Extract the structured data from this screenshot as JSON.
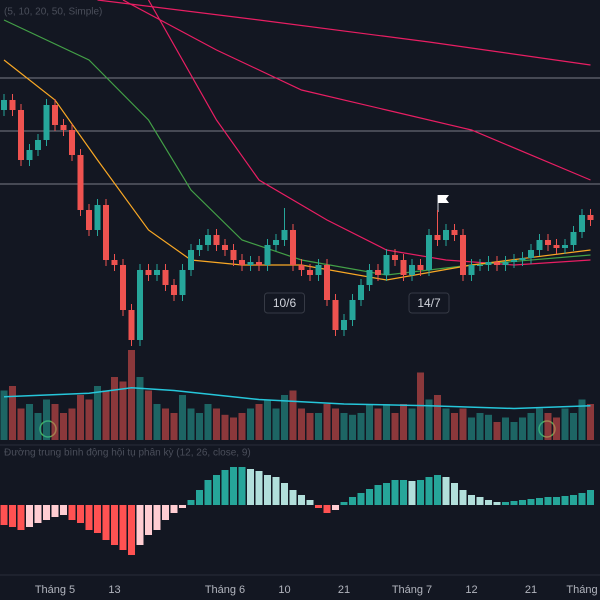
{
  "chart_data": {
    "type": "candlestick",
    "legend_price": "(5, 10, 20, 50, Simple)",
    "legend_macd": "Đường trung bình động hội tụ phân kỳ (12, 26, close, 9)",
    "ylim": [
      0,
      360
    ],
    "volume_ylim": [
      0,
      100
    ],
    "macd_ylim": [
      -65,
      65
    ],
    "up_color": "#26a69a",
    "down_color": "#ef5350",
    "open": [
      250,
      260,
      250,
      200,
      210,
      220,
      255,
      235,
      230,
      205,
      150,
      130,
      155,
      100,
      95,
      50,
      20,
      90,
      85,
      90,
      75,
      65,
      90,
      110,
      115,
      125,
      115,
      110,
      100,
      95,
      98,
      95,
      115,
      120,
      130,
      95,
      90,
      85,
      95,
      60,
      30,
      40,
      60,
      75,
      90,
      85,
      105,
      100,
      85,
      95,
      90,
      125,
      120,
      130,
      125,
      85,
      95,
      95,
      98,
      95,
      98,
      100,
      102,
      110,
      120,
      115,
      112,
      115,
      128,
      145
    ],
    "high": [
      266,
      266,
      256,
      216,
      226,
      261,
      261,
      241,
      236,
      211,
      156,
      161,
      161,
      106,
      101,
      56,
      96,
      96,
      96,
      96,
      81,
      96,
      116,
      121,
      131,
      131,
      121,
      116,
      106,
      104,
      104,
      121,
      126,
      152,
      136,
      101,
      96,
      101,
      101,
      66,
      46,
      66,
      81,
      96,
      96,
      111,
      111,
      106,
      101,
      101,
      131,
      150,
      136,
      136,
      131,
      101,
      101,
      104,
      104,
      104,
      106,
      108,
      116,
      126,
      126,
      121,
      121,
      134,
      151,
      151
    ],
    "low": [
      244,
      244,
      194,
      194,
      204,
      214,
      229,
      224,
      199,
      144,
      124,
      124,
      94,
      89,
      44,
      14,
      14,
      79,
      79,
      69,
      59,
      59,
      84,
      104,
      109,
      109,
      104,
      94,
      89,
      89,
      89,
      89,
      109,
      114,
      89,
      84,
      79,
      79,
      54,
      24,
      24,
      34,
      54,
      69,
      79,
      79,
      94,
      79,
      79,
      84,
      84,
      114,
      114,
      119,
      79,
      79,
      89,
      89,
      89,
      89,
      92,
      94,
      96,
      104,
      109,
      106,
      106,
      109,
      122,
      134
    ],
    "close": [
      260,
      250,
      200,
      210,
      220,
      255,
      235,
      230,
      205,
      150,
      130,
      155,
      100,
      95,
      50,
      20,
      90,
      85,
      90,
      75,
      65,
      90,
      110,
      115,
      125,
      115,
      110,
      100,
      95,
      98,
      95,
      115,
      120,
      130,
      95,
      90,
      85,
      95,
      60,
      30,
      40,
      60,
      75,
      90,
      85,
      105,
      100,
      85,
      95,
      90,
      125,
      120,
      130,
      125,
      85,
      95,
      95,
      98,
      95,
      98,
      100,
      102,
      110,
      120,
      115,
      112,
      115,
      128,
      145,
      140
    ],
    "volume": [
      55,
      60,
      35,
      40,
      30,
      45,
      40,
      30,
      35,
      50,
      45,
      60,
      55,
      70,
      65,
      100,
      70,
      55,
      40,
      35,
      30,
      50,
      35,
      30,
      40,
      35,
      28,
      25,
      30,
      35,
      40,
      45,
      35,
      50,
      55,
      35,
      30,
      30,
      40,
      35,
      30,
      28,
      30,
      40,
      35,
      40,
      30,
      40,
      35,
      75,
      45,
      50,
      35,
      30,
      35,
      25,
      30,
      28,
      20,
      25,
      20,
      25,
      30,
      35,
      30,
      25,
      35,
      30,
      45,
      40
    ],
    "macd_hist": [
      -20,
      -22,
      -25,
      -22,
      -18,
      -15,
      -12,
      -10,
      -15,
      -18,
      -25,
      -28,
      -35,
      -40,
      -45,
      -50,
      -40,
      -30,
      -25,
      -15,
      -8,
      -3,
      5,
      15,
      25,
      30,
      35,
      38,
      38,
      36,
      34,
      30,
      28,
      22,
      15,
      10,
      5,
      -3,
      -8,
      -5,
      3,
      8,
      12,
      16,
      20,
      22,
      25,
      25,
      24,
      25,
      28,
      30,
      28,
      22,
      15,
      10,
      8,
      5,
      3,
      3,
      4,
      5,
      6,
      7,
      8,
      8,
      9,
      10,
      12,
      15
    ],
    "moving_averages": [
      {
        "color": "#e91e63",
        "x": [
          11,
          30,
          50,
          69
        ],
        "values": [
          360,
          340,
          318,
          295
        ]
      },
      {
        "color": "#e91e63",
        "x": [
          14,
          25,
          35,
          45,
          55,
          69
        ],
        "values": [
          360,
          310,
          270,
          250,
          230,
          180
        ]
      },
      {
        "color": "#e91e63",
        "x": [
          17,
          25,
          30,
          38,
          45,
          52,
          60,
          69
        ],
        "values": [
          360,
          240,
          180,
          140,
          110,
          100,
          95,
          100
        ]
      },
      {
        "color": "#43a047",
        "x": [
          0,
          10,
          17,
          22,
          28,
          35,
          45,
          55,
          69
        ],
        "values": [
          340,
          300,
          240,
          170,
          120,
          100,
          85,
          95,
          105
        ]
      },
      {
        "color": "#f9a825",
        "x": [
          0,
          6,
          11,
          17,
          22,
          28,
          35,
          45,
          55,
          69
        ],
        "values": [
          300,
          260,
          200,
          130,
          100,
          95,
          95,
          80,
          95,
          110
        ]
      }
    ],
    "volume_ma": {
      "color": "#26c6da",
      "x": [
        0,
        10,
        15,
        20,
        30,
        40,
        50,
        60,
        69
      ],
      "values": [
        48,
        52,
        58,
        55,
        45,
        40,
        38,
        35,
        38
      ]
    },
    "levels": [
      282,
      229,
      176
    ],
    "annotations": [
      {
        "index": 33,
        "text": "10/6"
      },
      {
        "index": 50,
        "text": "14/7"
      }
    ],
    "xticks": [
      {
        "index": 6,
        "label": "Tháng 5"
      },
      {
        "index": 13,
        "label": "13"
      },
      {
        "index": 26,
        "label": "Tháng 6"
      },
      {
        "index": 33,
        "label": "10"
      },
      {
        "index": 40,
        "label": "21"
      },
      {
        "index": 48,
        "label": "Tháng 7"
      },
      {
        "index": 55,
        "label": "12"
      },
      {
        "index": 62,
        "label": "21"
      },
      {
        "index": 68,
        "label": "Tháng"
      }
    ]
  }
}
